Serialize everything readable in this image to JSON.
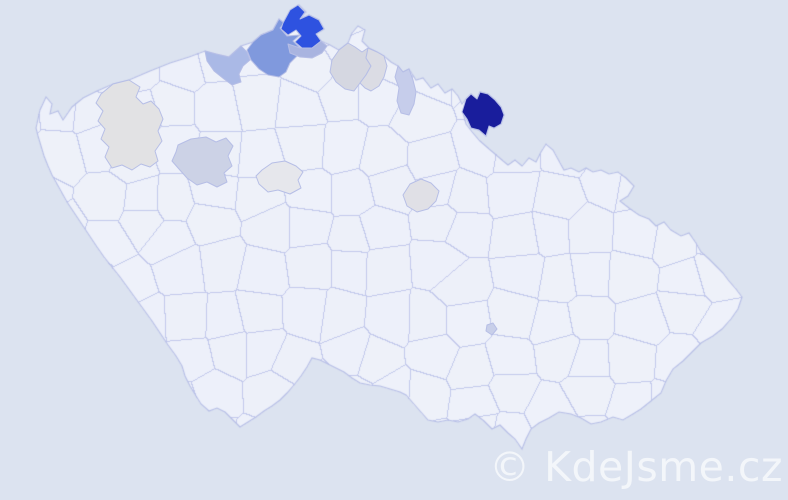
{
  "map": {
    "watermark_text": "© KdeJsme.cz",
    "colors": {
      "background": "#dce3f0",
      "land": "#eef1f9",
      "district_border": "#c3c9ec",
      "country_border": "#b6bee6",
      "watermark": "#ffffff"
    },
    "highlighted_districts": [
      {
        "id": "north-spur-strong-blue",
        "color": "#2e52e0"
      },
      {
        "id": "north-medium-blue",
        "color": "#8099dd"
      },
      {
        "id": "north-slate-blue",
        "color": "#a9b4e0"
      },
      {
        "id": "northwest-periwinkle",
        "color": "#aab9e6"
      },
      {
        "id": "north-gray",
        "color": "#d5d7e1"
      },
      {
        "id": "north-gray-light",
        "color": "#dbdce4"
      },
      {
        "id": "north-lavender",
        "color": "#c6cdeb"
      },
      {
        "id": "northeast-navy",
        "color": "#191d9c"
      },
      {
        "id": "west-warm-gray",
        "color": "#e2e2e4"
      },
      {
        "id": "west-blue-gray",
        "color": "#ccd2e6"
      },
      {
        "id": "central-pale-gray",
        "color": "#e6e7ec"
      },
      {
        "id": "central-east-pale-gray",
        "color": "#e0e0e6"
      },
      {
        "id": "small-southeast-marker",
        "color": "#c8cfe9"
      }
    ]
  }
}
